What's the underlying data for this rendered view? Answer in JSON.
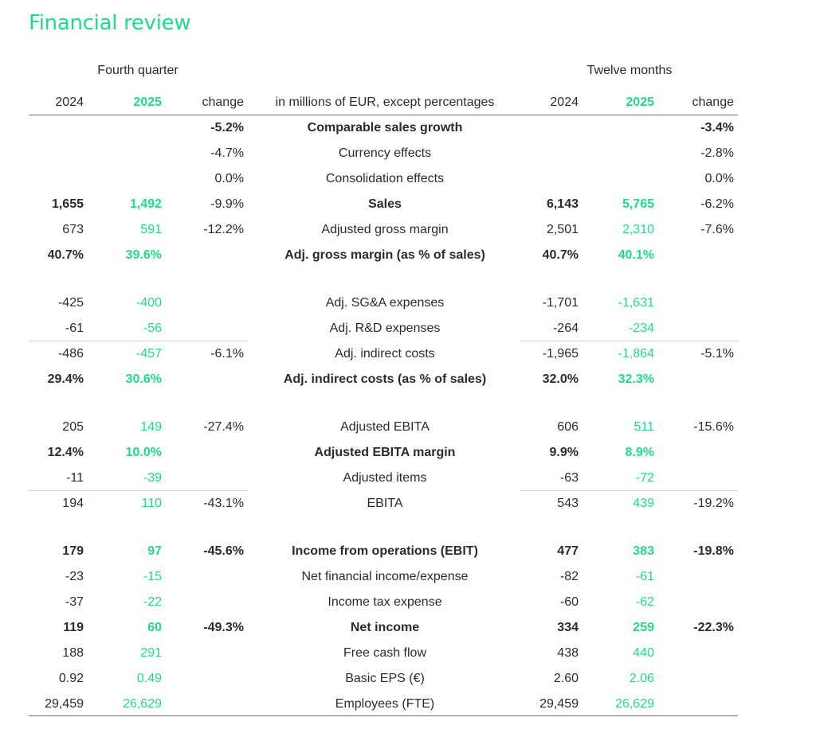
{
  "title": "Financial review",
  "groups": {
    "q4": "Fourth quarter",
    "fy": "Twelve months"
  },
  "header": {
    "q4_2024": "2024",
    "q4_2025": "2025",
    "q4_change": "change",
    "label": "in millions of EUR, except percentages",
    "fy_2024": "2024",
    "fy_2025": "2025",
    "fy_change": "change"
  },
  "colors": {
    "accent": "#1edc86",
    "text": "#2b2b2b"
  },
  "rows": [
    {
      "label": "Comparable sales growth",
      "q4_2024": "",
      "q4_2025": "",
      "q4_change": "-5.2%",
      "fy_2024": "",
      "fy_2025": "",
      "fy_change": "-3.4%",
      "bold": "all"
    },
    {
      "label": "Currency effects",
      "q4_2024": "",
      "q4_2025": "",
      "q4_change": "-4.7%",
      "fy_2024": "",
      "fy_2025": "",
      "fy_change": "-2.8%",
      "bold": "none"
    },
    {
      "label": "Consolidation effects",
      "q4_2024": "",
      "q4_2025": "",
      "q4_change": "0.0%",
      "fy_2024": "",
      "fy_2025": "",
      "fy_change": "0.0%",
      "bold": "none"
    },
    {
      "label": "Sales",
      "q4_2024": "1,655",
      "q4_2025": "1,492",
      "q4_change": "-9.9%",
      "fy_2024": "6,143",
      "fy_2025": "5,765",
      "fy_change": "-6.2%",
      "bold": "values"
    },
    {
      "label": "Adjusted gross margin",
      "q4_2024": "673",
      "q4_2025": "591",
      "q4_change": "-12.2%",
      "fy_2024": "2,501",
      "fy_2025": "2,310",
      "fy_change": "-7.6%",
      "bold": "none"
    },
    {
      "label": "Adj. gross margin (as % of sales)",
      "q4_2024": "40.7%",
      "q4_2025": "39.6%",
      "q4_change": "",
      "fy_2024": "40.7%",
      "fy_2025": "40.1%",
      "fy_change": "",
      "bold": "all"
    },
    {
      "label": "Adj. SG&A expenses",
      "q4_2024": "-425",
      "q4_2025": "-400",
      "q4_change": "",
      "fy_2024": "-1,701",
      "fy_2025": "-1,631",
      "fy_change": "",
      "bold": "none"
    },
    {
      "label": "Adj. R&D expenses",
      "q4_2024": "-61",
      "q4_2025": "-56",
      "q4_change": "",
      "fy_2024": "-264",
      "fy_2025": "-234",
      "fy_change": "",
      "bold": "none"
    },
    {
      "label": "Adj. indirect costs",
      "q4_2024": "-486",
      "q4_2025": "-457",
      "q4_change": "-6.1%",
      "fy_2024": "-1,965",
      "fy_2025": "-1,864",
      "fy_change": "-5.1%",
      "bold": "none"
    },
    {
      "label": "Adj. indirect costs (as % of sales)",
      "q4_2024": "29.4%",
      "q4_2025": "30.6%",
      "q4_change": "",
      "fy_2024": "32.0%",
      "fy_2025": "32.3%",
      "fy_change": "",
      "bold": "all"
    },
    {
      "label": "Adjusted EBITA",
      "q4_2024": "205",
      "q4_2025": "149",
      "q4_change": "-27.4%",
      "fy_2024": "606",
      "fy_2025": "511",
      "fy_change": "-15.6%",
      "bold": "none"
    },
    {
      "label": "Adjusted EBITA margin",
      "q4_2024": "12.4%",
      "q4_2025": "10.0%",
      "q4_change": "",
      "fy_2024": "9.9%",
      "fy_2025": "8.9%",
      "fy_change": "",
      "bold": "all"
    },
    {
      "label": "Adjusted items",
      "q4_2024": "-11",
      "q4_2025": "-39",
      "q4_change": "",
      "fy_2024": "-63",
      "fy_2025": "-72",
      "fy_change": "",
      "bold": "none"
    },
    {
      "label": "EBITA",
      "q4_2024": "194",
      "q4_2025": "110",
      "q4_change": "-43.1%",
      "fy_2024": "543",
      "fy_2025": "439",
      "fy_change": "-19.2%",
      "bold": "none"
    },
    {
      "label": "Income from operations (EBIT)",
      "q4_2024": "179",
      "q4_2025": "97",
      "q4_change": "-45.6%",
      "fy_2024": "477",
      "fy_2025": "383",
      "fy_change": "-19.8%",
      "bold": "all"
    },
    {
      "label": "Net financial income/expense",
      "q4_2024": "-23",
      "q4_2025": "-15",
      "q4_change": "",
      "fy_2024": "-82",
      "fy_2025": "-61",
      "fy_change": "",
      "bold": "none"
    },
    {
      "label": "Income tax expense",
      "q4_2024": "-37",
      "q4_2025": "-22",
      "q4_change": "",
      "fy_2024": "-60",
      "fy_2025": "-62",
      "fy_change": "",
      "bold": "none"
    },
    {
      "label": "Net income",
      "q4_2024": "119",
      "q4_2025": "60",
      "q4_change": "-49.3%",
      "fy_2024": "334",
      "fy_2025": "259",
      "fy_change": "-22.3%",
      "bold": "all"
    },
    {
      "label": "Free cash flow",
      "q4_2024": "188",
      "q4_2025": "291",
      "q4_change": "",
      "fy_2024": "438",
      "fy_2025": "440",
      "fy_change": "",
      "bold": "none"
    },
    {
      "label": "Basic EPS (€)",
      "q4_2024": "0.92",
      "q4_2025": "0.49",
      "q4_change": "",
      "fy_2024": "2.60",
      "fy_2025": "2.06",
      "fy_change": "",
      "bold": "none"
    },
    {
      "label": "Employees (FTE)",
      "q4_2024": "29,459",
      "q4_2025": "26,629",
      "q4_change": "",
      "fy_2024": "29,459",
      "fy_2025": "26,629",
      "fy_change": "",
      "bold": "none"
    }
  ]
}
